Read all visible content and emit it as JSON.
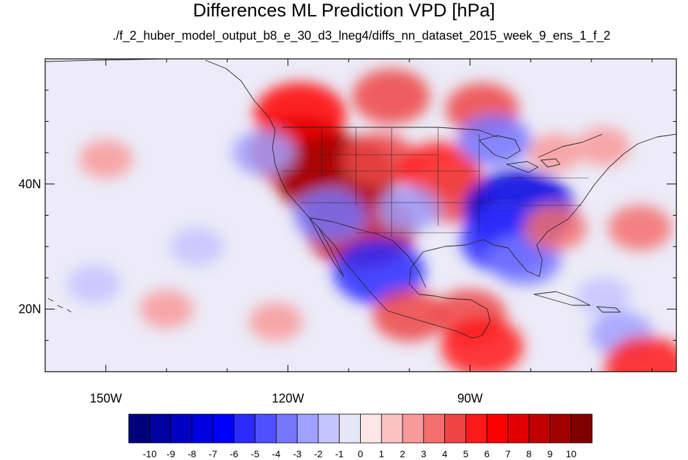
{
  "title": "Differences ML Prediction VPD [hPa]",
  "subtitle": "./f_2_huber_model_output_b8_e_30_d3_lneg4/diffs_nn_dataset_2015_week_9_ens_1_f_2",
  "map": {
    "lon_range": [
      -160,
      -56
    ],
    "lat_range": [
      10,
      60
    ],
    "lon_ticks": [
      {
        "value": -150,
        "label": "150W"
      },
      {
        "value": -120,
        "label": "120W"
      },
      {
        "value": -90,
        "label": "90W"
      }
    ],
    "lat_ticks": [
      {
        "value": 40,
        "label": "40N"
      },
      {
        "value": 20,
        "label": "20N"
      }
    ],
    "minor_lon_step": 10,
    "minor_lat_step": 5,
    "colorbar": {
      "levels": [
        "-10",
        "-9",
        "-8",
        "-7",
        "-6",
        "-5",
        "-4",
        "-3",
        "-2",
        "-1",
        "0",
        "1",
        "2",
        "3",
        "4",
        "5",
        "6",
        "7",
        "8",
        "9",
        "10"
      ],
      "colors": [
        "#00007a",
        "#00009e",
        "#0000c2",
        "#0000e0",
        "#0000ff",
        "#2b2bff",
        "#4f4fff",
        "#7676ff",
        "#a0a0ff",
        "#c4c4ff",
        "#e6e6f7",
        "#fde6e6",
        "#fcc2c2",
        "#f99a9a",
        "#f46e6e",
        "#ee4444",
        "#ff1a1a",
        "#ff0000",
        "#e00000",
        "#c00000",
        "#a00000",
        "#800000"
      ]
    },
    "anomalies": [
      {
        "lon": -103,
        "lat": 54,
        "value": 4.5
      },
      {
        "lon": -118,
        "lat": 51,
        "value": 6
      },
      {
        "lon": -118,
        "lat": 45,
        "value": 7
      },
      {
        "lon": -112,
        "lat": 41,
        "value": 9
      },
      {
        "lon": -105,
        "lat": 44,
        "value": 4
      },
      {
        "lon": -95,
        "lat": 42,
        "value": 5
      },
      {
        "lon": -93,
        "lat": 38,
        "value": 4
      },
      {
        "lon": -88,
        "lat": 52,
        "value": 4
      },
      {
        "lon": -108,
        "lat": 33,
        "value": 8
      },
      {
        "lon": -105,
        "lat": 26,
        "value": -6
      },
      {
        "lon": -82,
        "lat": 36,
        "value": -8
      },
      {
        "lon": -84,
        "lat": 31,
        "value": -6
      },
      {
        "lon": -81,
        "lat": 28,
        "value": -4
      },
      {
        "lon": -113,
        "lat": 35,
        "value": -4
      },
      {
        "lon": -100,
        "lat": 36,
        "value": -3
      },
      {
        "lon": -86,
        "lat": 47,
        "value": -4
      },
      {
        "lon": -124,
        "lat": 45,
        "value": -3
      },
      {
        "lon": -76,
        "lat": 33,
        "value": 3
      },
      {
        "lon": -62,
        "lat": 33,
        "value": 3
      },
      {
        "lon": -90,
        "lat": 19,
        "value": 4
      },
      {
        "lon": -88,
        "lat": 14,
        "value": 5
      },
      {
        "lon": -100,
        "lat": 19,
        "value": 4
      },
      {
        "lon": -150,
        "lat": 44,
        "value": 2
      },
      {
        "lon": -152,
        "lat": 24,
        "value": -2
      },
      {
        "lon": -135,
        "lat": 30,
        "value": -2
      },
      {
        "lon": -140,
        "lat": 20,
        "value": 2
      },
      {
        "lon": -122,
        "lat": 18,
        "value": 2
      },
      {
        "lon": -68,
        "lat": 22,
        "value": -2
      },
      {
        "lon": -65,
        "lat": 16,
        "value": -3
      },
      {
        "lon": -61,
        "lat": 11,
        "value": 5
      },
      {
        "lon": -76,
        "lat": 45,
        "value": 2
      },
      {
        "lon": -68,
        "lat": 46,
        "value": 2
      }
    ]
  }
}
